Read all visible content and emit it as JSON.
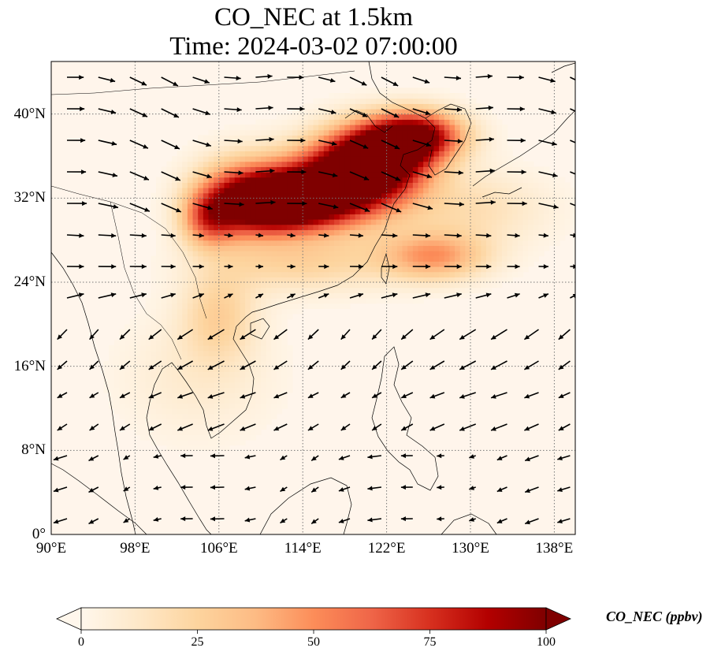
{
  "title": {
    "line1": "CO_NEC at 1.5km",
    "line2": "Time: 2024-03-02 07:00:00"
  },
  "map": {
    "extent": {
      "lon": [
        90,
        140
      ],
      "lat": [
        0,
        45
      ]
    },
    "lat_ticks": [
      {
        "value": 0,
        "label": "0°"
      },
      {
        "value": 8,
        "label": "8°N"
      },
      {
        "value": 16,
        "label": "16°N"
      },
      {
        "value": 24,
        "label": "24°N"
      },
      {
        "value": 32,
        "label": "32°N"
      },
      {
        "value": 40,
        "label": "40°N"
      }
    ],
    "lon_ticks": [
      {
        "value": 90,
        "label": "90°E"
      },
      {
        "value": 98,
        "label": "98°E"
      },
      {
        "value": 106,
        "label": "106°E"
      },
      {
        "value": 114,
        "label": "114°E"
      },
      {
        "value": 122,
        "label": "122°E"
      },
      {
        "value": 130,
        "label": "130°E"
      },
      {
        "value": 138,
        "label": "138°E"
      }
    ],
    "gridlines": true,
    "overlay": "wind vectors",
    "background_color": "#fff5eb",
    "coastline_color": "#000000"
  },
  "colorbar": {
    "label": "CO_NEC (ppbv)",
    "range": [
      0,
      100
    ],
    "extend": "both",
    "cmap": "OrRd",
    "ticks": [
      {
        "value": 0,
        "label": "0"
      },
      {
        "value": 25,
        "label": "25"
      },
      {
        "value": 50,
        "label": "50"
      },
      {
        "value": 75,
        "label": "75"
      },
      {
        "value": 100,
        "label": "100"
      }
    ],
    "stops": [
      "#fff7ec",
      "#fee8c8",
      "#fdd49e",
      "#fdbb84",
      "#fc8d59",
      "#ef6548",
      "#d7301f",
      "#b30000",
      "#7f0000"
    ]
  },
  "chart_data": {
    "type": "heatmap",
    "title": "CO_NEC at 1.5km",
    "subtitle": "Time: 2024-03-02 07:00:00",
    "xlabel": "",
    "ylabel": "",
    "x_range": [
      90,
      140
    ],
    "y_range": [
      0,
      45
    ],
    "value_range": [
      0,
      100
    ],
    "plumes": [
      {
        "lon": 117,
        "lat": 33,
        "sx": 4.5,
        "sy": 2.4,
        "peak": 110
      },
      {
        "lon": 121,
        "lat": 36,
        "sx": 3.5,
        "sy": 2.2,
        "peak": 115
      },
      {
        "lon": 112,
        "lat": 31.5,
        "sx": 3.5,
        "sy": 1.8,
        "peak": 100
      },
      {
        "lon": 125,
        "lat": 38,
        "sx": 3.0,
        "sy": 1.6,
        "peak": 90
      },
      {
        "lon": 108,
        "lat": 32,
        "sx": 3.0,
        "sy": 2.5,
        "peak": 65
      },
      {
        "lon": 105,
        "lat": 30,
        "sx": 1.8,
        "sy": 1.8,
        "peak": 50
      },
      {
        "lon": 126.5,
        "lat": 26.5,
        "sx": 3.5,
        "sy": 1.6,
        "peak": 45
      },
      {
        "lon": 114,
        "lat": 26,
        "sx": 6.0,
        "sy": 2.0,
        "peak": 25
      },
      {
        "lon": 106,
        "lat": 21,
        "sx": 2.5,
        "sy": 3.0,
        "peak": 25
      },
      {
        "lon": 130,
        "lat": 31,
        "sx": 5.0,
        "sy": 2.5,
        "peak": 18
      },
      {
        "lon": 104,
        "lat": 15,
        "sx": 5.0,
        "sy": 4.0,
        "peak": 10
      }
    ],
    "wind_grid": {
      "lon_step": 3,
      "lat_step": 3,
      "unit_note": "arrows show wind direction; length proportional to speed"
    }
  }
}
